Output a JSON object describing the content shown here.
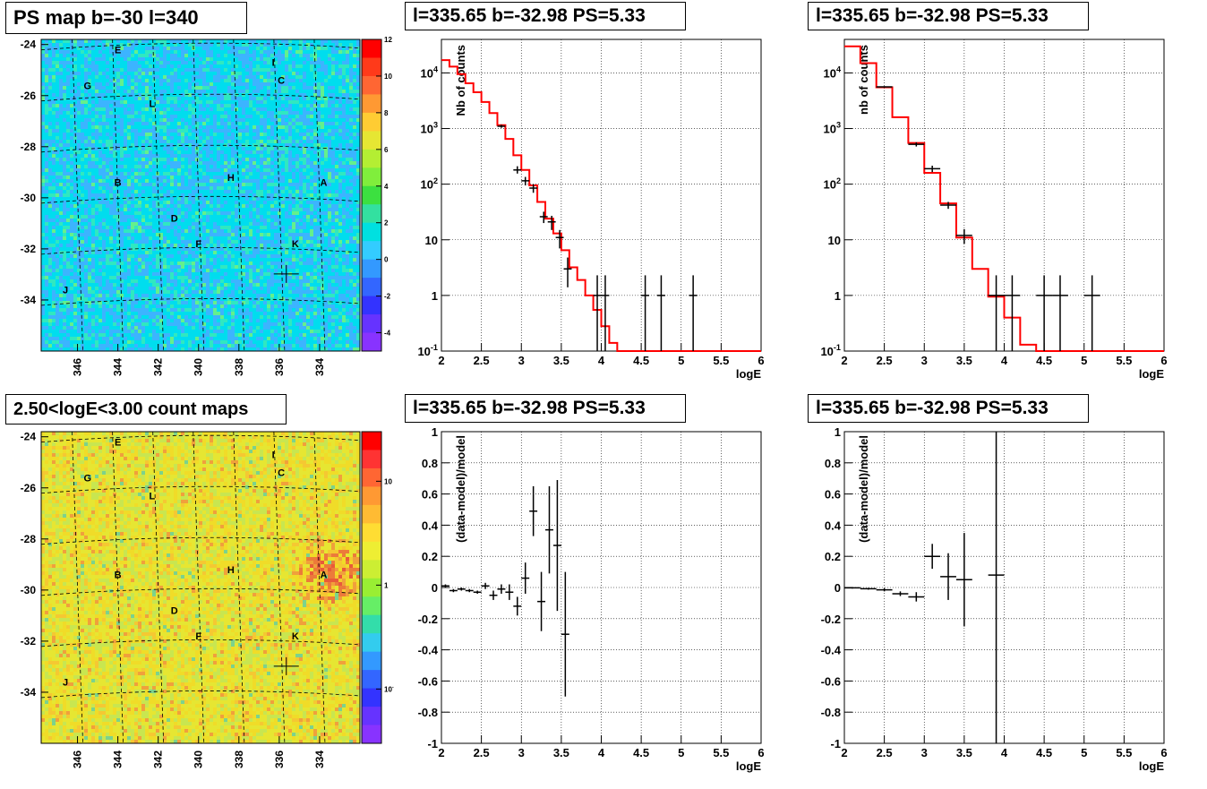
{
  "colors": {
    "frame": "#000000",
    "grid": "#000000",
    "model_line": "#ff0000",
    "data_markers": "#000000"
  },
  "chart_data": [
    {
      "id": "ps_map",
      "type": "heatmap",
      "title": "PS map b=-30 l=340",
      "x_ticks": [
        "346",
        "344",
        "342",
        "340",
        "338",
        "336",
        "334"
      ],
      "y_ticks": [
        "-24",
        "-26",
        "-28",
        "-30",
        "-32",
        "-34"
      ],
      "xlim": [
        347.8,
        332.0
      ],
      "ylim": [
        -36.0,
        -23.8
      ],
      "colorbar_ticks": [
        "12",
        "10",
        "8",
        "6",
        "4",
        "2",
        "0",
        "-2",
        "-4"
      ],
      "colorbar_range": [
        -5,
        12
      ],
      "source_labels": [
        {
          "name": "E",
          "l": 344.0,
          "b": -24.2
        },
        {
          "name": "I",
          "l": 336.3,
          "b": -24.7
        },
        {
          "name": "G",
          "l": 345.5,
          "b": -25.6
        },
        {
          "name": "C",
          "l": 335.9,
          "b": -25.4
        },
        {
          "name": "L",
          "l": 342.3,
          "b": -26.3
        },
        {
          "name": "H",
          "l": 338.4,
          "b": -29.2
        },
        {
          "name": "B",
          "l": 344.0,
          "b": -29.4
        },
        {
          "name": "A",
          "l": 333.8,
          "b": -29.4
        },
        {
          "name": "D",
          "l": 341.2,
          "b": -30.8
        },
        {
          "name": "K",
          "l": 335.2,
          "b": -31.8
        },
        {
          "name": "F",
          "l": 340.0,
          "b": -31.8
        },
        {
          "name": "J",
          "l": 346.6,
          "b": -33.6
        }
      ],
      "marker": {
        "l": 335.65,
        "b": -32.98
      }
    },
    {
      "id": "spectrum_left",
      "type": "line",
      "title": "l=335.65 b=-32.98 PS=5.33",
      "xlabel": "logE",
      "ylabel": "Nb of counts",
      "xlim": [
        2,
        6
      ],
      "ylim": [
        0.1,
        40000
      ],
      "y_log": true,
      "x_ticks": [
        "2",
        "2.5",
        "3",
        "3.5",
        "4",
        "4.5",
        "5",
        "5.5",
        "6"
      ],
      "y_ticks": [
        "10^-1",
        "1",
        "10",
        "10^2",
        "10^3",
        "10^4"
      ],
      "grid": true,
      "model_step": [
        [
          2.0,
          17000
        ],
        [
          2.1,
          13000
        ],
        [
          2.2,
          9500
        ],
        [
          2.3,
          6500
        ],
        [
          2.4,
          4500
        ],
        [
          2.5,
          3000
        ],
        [
          2.6,
          1900
        ],
        [
          2.7,
          1150
        ],
        [
          2.8,
          650
        ],
        [
          2.9,
          330
        ],
        [
          3.0,
          180
        ],
        [
          3.1,
          95
        ],
        [
          3.2,
          48
        ],
        [
          3.3,
          24
        ],
        [
          3.4,
          13
        ],
        [
          3.5,
          6.5
        ],
        [
          3.6,
          3.2
        ],
        [
          3.7,
          1.9
        ],
        [
          3.8,
          1.0
        ],
        [
          3.9,
          0.55
        ],
        [
          4.0,
          0.28
        ],
        [
          4.1,
          0.14
        ],
        [
          4.2,
          0.1
        ],
        [
          6.0,
          0.1
        ]
      ],
      "data_points": [
        {
          "x": 2.75,
          "y": 1100,
          "yerr": [
            1030,
            1170
          ]
        },
        {
          "x": 2.95,
          "y": 180,
          "yerr": [
            155,
            210
          ]
        },
        {
          "x": 3.05,
          "y": 115,
          "yerr": [
            95,
            135
          ]
        },
        {
          "x": 3.15,
          "y": 85,
          "yerr": [
            70,
            100
          ]
        },
        {
          "x": 3.28,
          "y": 26,
          "yerr": [
            20,
            32
          ]
        },
        {
          "x": 3.38,
          "y": 21,
          "yerr": [
            15,
            27
          ]
        },
        {
          "x": 3.48,
          "y": 11,
          "yerr": [
            7,
            15
          ]
        },
        {
          "x": 3.58,
          "y": 3,
          "yerr": [
            1.4,
            4.8
          ]
        },
        {
          "x": 3.95,
          "y": 1,
          "yerr": [
            0.1,
            2.3
          ]
        },
        {
          "x": 4.05,
          "y": 1,
          "yerr": [
            0.1,
            2.3
          ]
        },
        {
          "x": 4.55,
          "y": 1,
          "yerr": [
            0.1,
            2.3
          ]
        },
        {
          "x": 4.75,
          "y": 1,
          "yerr": [
            0.1,
            2.3
          ]
        },
        {
          "x": 5.15,
          "y": 1,
          "yerr": [
            0.1,
            2.3
          ]
        }
      ]
    },
    {
      "id": "spectrum_right",
      "type": "line",
      "title": "l=335.65 b=-32.98 PS=5.33",
      "xlabel": "logE",
      "ylabel": "nb of counts",
      "xlim": [
        2,
        6
      ],
      "ylim": [
        0.1,
        40000
      ],
      "y_log": true,
      "x_ticks": [
        "2",
        "2.5",
        "3",
        "3.5",
        "4",
        "4.5",
        "5",
        "5.5",
        "6"
      ],
      "y_ticks": [
        "10^-1",
        "1",
        "10",
        "10^2",
        "10^3",
        "10^4"
      ],
      "grid": true,
      "model_step": [
        [
          2.0,
          30000
        ],
        [
          2.2,
          15000
        ],
        [
          2.4,
          5500
        ],
        [
          2.6,
          1600
        ],
        [
          2.8,
          550
        ],
        [
          3.0,
          160
        ],
        [
          3.2,
          45
        ],
        [
          3.4,
          11
        ],
        [
          3.6,
          3
        ],
        [
          3.8,
          0.95
        ],
        [
          4.0,
          0.4
        ],
        [
          4.2,
          0.13
        ],
        [
          4.4,
          0.1
        ],
        [
          6.0,
          0.1
        ]
      ],
      "data_points": [
        {
          "x": 2.5,
          "y": 5600,
          "yerr": [
            5450,
            5750
          ]
        },
        {
          "x": 2.9,
          "y": 520,
          "yerr": [
            475,
            565
          ]
        },
        {
          "x": 3.1,
          "y": 190,
          "yerr": [
            165,
            215
          ]
        },
        {
          "x": 3.3,
          "y": 42,
          "yerr": [
            36,
            48
          ]
        },
        {
          "x": 3.5,
          "y": 12,
          "yerr": [
            8.5,
            15.5
          ]
        },
        {
          "x": 3.9,
          "y": 1,
          "yerr": [
            0.1,
            2.3
          ]
        },
        {
          "x": 4.1,
          "y": 1,
          "yerr": [
            0.1,
            2.3
          ]
        },
        {
          "x": 4.5,
          "y": 1,
          "yerr": [
            0.1,
            2.3
          ]
        },
        {
          "x": 4.7,
          "y": 1,
          "yerr": [
            0.1,
            2.3
          ]
        },
        {
          "x": 5.1,
          "y": 1,
          "yerr": [
            0.1,
            2.3
          ]
        }
      ]
    },
    {
      "id": "count_map",
      "type": "heatmap",
      "title": "2.50<logE<3.00 count maps",
      "x_ticks": [
        "346",
        "344",
        "342",
        "340",
        "338",
        "336",
        "334"
      ],
      "y_ticks": [
        "-24",
        "-26",
        "-28",
        "-30",
        "-32",
        "-34"
      ],
      "xlim": [
        347.8,
        332.0
      ],
      "ylim": [
        -36.0,
        -23.8
      ],
      "colorbar_ticks": [
        "10",
        "1",
        "10^-1"
      ],
      "colorbar_log": true,
      "colorbar_range": [
        0.03,
        30
      ],
      "source_labels": [
        {
          "name": "E",
          "l": 344.0,
          "b": -24.2
        },
        {
          "name": "I",
          "l": 336.3,
          "b": -24.7
        },
        {
          "name": "G",
          "l": 345.5,
          "b": -25.6
        },
        {
          "name": "C",
          "l": 335.9,
          "b": -25.4
        },
        {
          "name": "L",
          "l": 342.3,
          "b": -26.3
        },
        {
          "name": "H",
          "l": 338.4,
          "b": -29.2
        },
        {
          "name": "B",
          "l": 344.0,
          "b": -29.4
        },
        {
          "name": "A",
          "l": 333.8,
          "b": -29.4
        },
        {
          "name": "D",
          "l": 341.2,
          "b": -30.8
        },
        {
          "name": "K",
          "l": 335.2,
          "b": -31.8
        },
        {
          "name": "F",
          "l": 340.0,
          "b": -31.8
        },
        {
          "name": "J",
          "l": 346.6,
          "b": -33.6
        }
      ],
      "marker": {
        "l": 335.65,
        "b": -32.98
      }
    },
    {
      "id": "residual_left",
      "type": "scatter",
      "title": "l=335.65 b=-32.98 PS=5.33",
      "xlabel": "logE",
      "ylabel": "(data-model)/model",
      "xlim": [
        2,
        6
      ],
      "ylim": [
        -1,
        1
      ],
      "x_ticks": [
        "2",
        "2.5",
        "3",
        "3.5",
        "4",
        "4.5",
        "5",
        "5.5",
        "6"
      ],
      "y_ticks": [
        "-1",
        "-0.8",
        "-0.6",
        "-0.4",
        "-0.2",
        "0",
        "0.2",
        "0.4",
        "0.6",
        "0.8",
        "1"
      ],
      "grid": true,
      "points": [
        {
          "x": 2.05,
          "y": 0.01,
          "yerr": 0.01
        },
        {
          "x": 2.15,
          "y": -0.02,
          "yerr": 0.01
        },
        {
          "x": 2.25,
          "y": -0.01,
          "yerr": 0.01
        },
        {
          "x": 2.35,
          "y": -0.02,
          "yerr": 0.01
        },
        {
          "x": 2.45,
          "y": -0.03,
          "yerr": 0.01
        },
        {
          "x": 2.55,
          "y": 0.01,
          "yerr": 0.02
        },
        {
          "x": 2.65,
          "y": -0.05,
          "yerr": 0.03
        },
        {
          "x": 2.75,
          "y": -0.01,
          "yerr": 0.03
        },
        {
          "x": 2.85,
          "y": -0.03,
          "yerr": 0.05
        },
        {
          "x": 2.95,
          "y": -0.12,
          "yerr": 0.06
        },
        {
          "x": 3.05,
          "y": 0.06,
          "yerr": 0.1
        },
        {
          "x": 3.15,
          "y": 0.49,
          "yerr": 0.16
        },
        {
          "x": 3.25,
          "y": -0.09,
          "yerr": 0.19
        },
        {
          "x": 3.35,
          "y": 0.37,
          "yerr": 0.28
        },
        {
          "x": 3.45,
          "y": 0.27,
          "yerr": 0.42
        },
        {
          "x": 3.55,
          "y": -0.3,
          "yerr": 0.4
        }
      ]
    },
    {
      "id": "residual_right",
      "type": "scatter",
      "title": "l=335.65 b=-32.98 PS=5.33",
      "xlabel": "logE",
      "ylabel": "(data-model)/model",
      "xlim": [
        2,
        6
      ],
      "ylim": [
        -1,
        1
      ],
      "x_ticks": [
        "2",
        "2.5",
        "3",
        "3.5",
        "4",
        "4.5",
        "5",
        "5.5",
        "6"
      ],
      "y_ticks": [
        "-1",
        "-0.8",
        "-0.6",
        "-0.4",
        "-0.2",
        "0",
        "0.2",
        "0.4",
        "0.6",
        "0.8",
        "1"
      ],
      "grid": true,
      "points": [
        {
          "x": 2.1,
          "y": -0.002,
          "yerr": 0.005
        },
        {
          "x": 2.3,
          "y": -0.008,
          "yerr": 0.006
        },
        {
          "x": 2.5,
          "y": -0.015,
          "yerr": 0.01
        },
        {
          "x": 2.7,
          "y": -0.04,
          "yerr": 0.015
        },
        {
          "x": 2.9,
          "y": -0.06,
          "yerr": 0.03
        },
        {
          "x": 3.1,
          "y": 0.2,
          "yerr": 0.08
        },
        {
          "x": 3.3,
          "y": 0.07,
          "yerr": 0.15
        },
        {
          "x": 3.5,
          "y": 0.05,
          "yerr": 0.3
        },
        {
          "x": 3.9,
          "y": 0.08,
          "yerr": 1.1
        }
      ]
    }
  ]
}
